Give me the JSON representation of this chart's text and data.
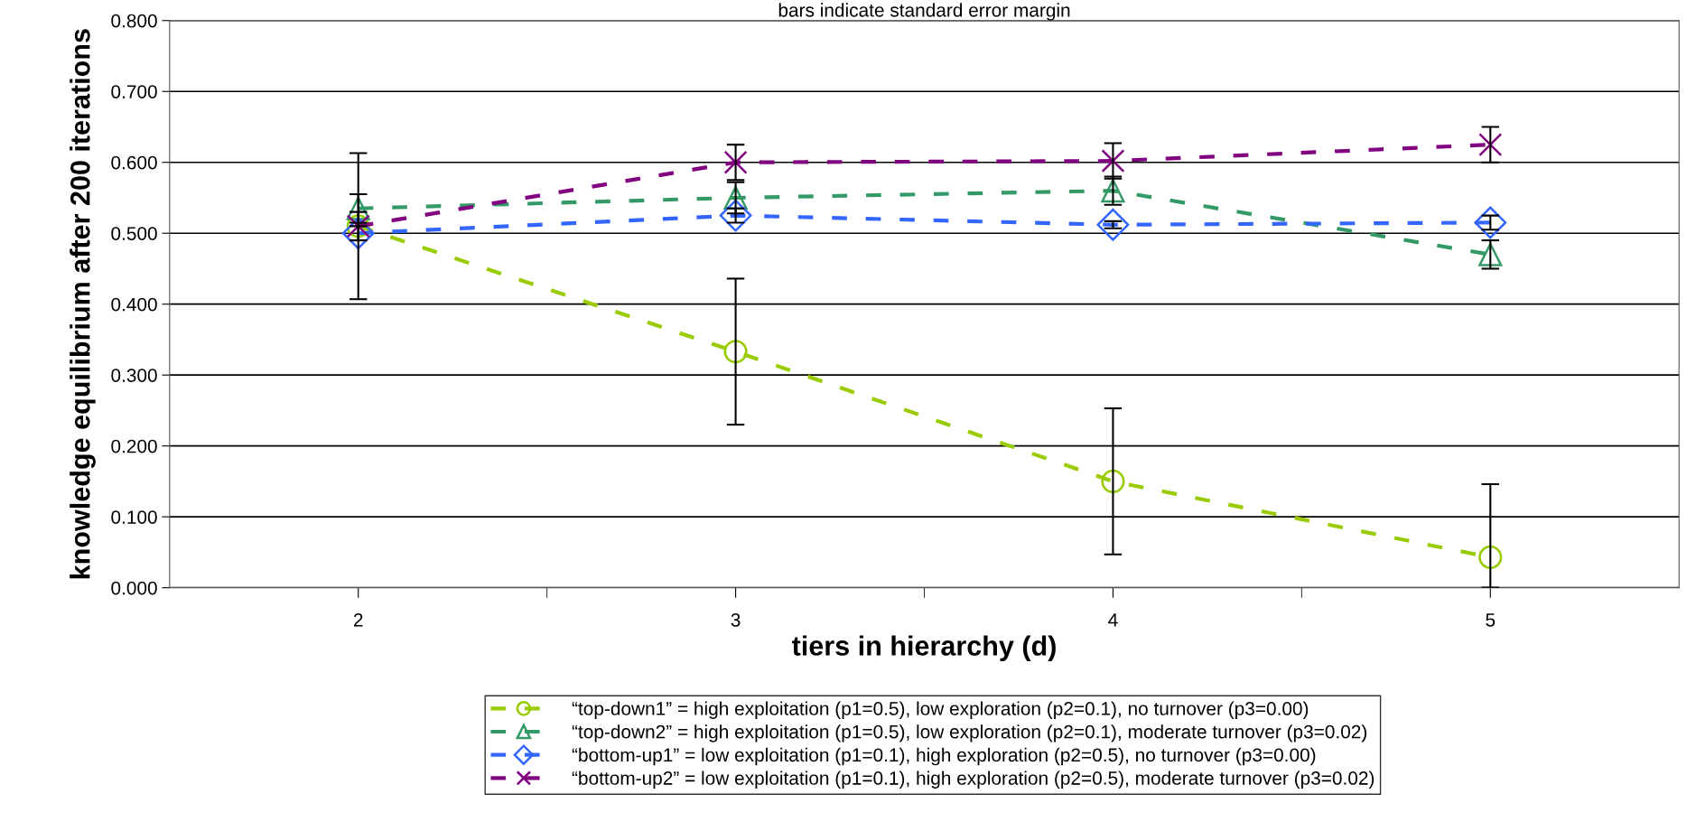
{
  "chart_data": {
    "type": "line",
    "title": "bars indicate standard error margin",
    "xlabel": "tiers in hierarchy (d)",
    "ylabel": "knowledge equilibrium after 200 iterations",
    "categories": [
      "2",
      "3",
      "4",
      "5"
    ],
    "series": [
      {
        "name": "“top-down1” = high exploitation (p1=0.5), low exploration (p2=0.1), no turnover (p3=0.00)",
        "color": "#99cc00",
        "marker": "circle",
        "values": [
          0.51,
          0.333,
          0.15,
          0.043
        ],
        "errors": [
          0.103,
          0.103,
          0.103,
          [
            0.0,
            0.146
          ]
        ]
      },
      {
        "name": "“top-down2” = high exploitation (p1=0.5), low exploration (p2=0.1), moderate turnover (p3=0.02)",
        "color": "#339966",
        "marker": "triangle",
        "values": [
          0.535,
          0.55,
          0.56,
          0.47
        ],
        "errors": [
          0.02,
          0.022,
          0.02,
          0.02
        ]
      },
      {
        "name": "“bottom-up1” = low exploitation (p1=0.1), high exploration (p2=0.5), no turnover (p3=0.00)",
        "color": "#3366ff",
        "marker": "diamond",
        "values": [
          0.5,
          0.525,
          0.512,
          0.515
        ],
        "errors": [
          0.01,
          0.01,
          0.005,
          0.01
        ]
      },
      {
        "name": "“bottom-up2” = low exploitation (p1=0.1), high exploration (p2=0.5), moderate turnover (p3=0.02)",
        "color": "#800080",
        "marker": "cross",
        "values": [
          0.51,
          0.6,
          0.602,
          0.625
        ],
        "errors": [
          0.02,
          0.025,
          0.025,
          0.025
        ]
      }
    ],
    "ylim": [
      0,
      0.8
    ],
    "yticks": [
      {
        "value": 0,
        "label": "0.000"
      },
      {
        "value": 0.1,
        "label": "0.100"
      },
      {
        "value": 0.2,
        "label": "0.200"
      },
      {
        "value": 0.3,
        "label": "0.300"
      },
      {
        "value": 0.4,
        "label": "0.400"
      },
      {
        "value": 0.5,
        "label": "0.500"
      },
      {
        "value": 0.6,
        "label": "0.600"
      },
      {
        "value": 0.7,
        "label": "0.700"
      },
      {
        "value": 0.8,
        "label": "0.800"
      }
    ],
    "grid": "y",
    "legend": "bottom",
    "line_style": "dashed"
  }
}
